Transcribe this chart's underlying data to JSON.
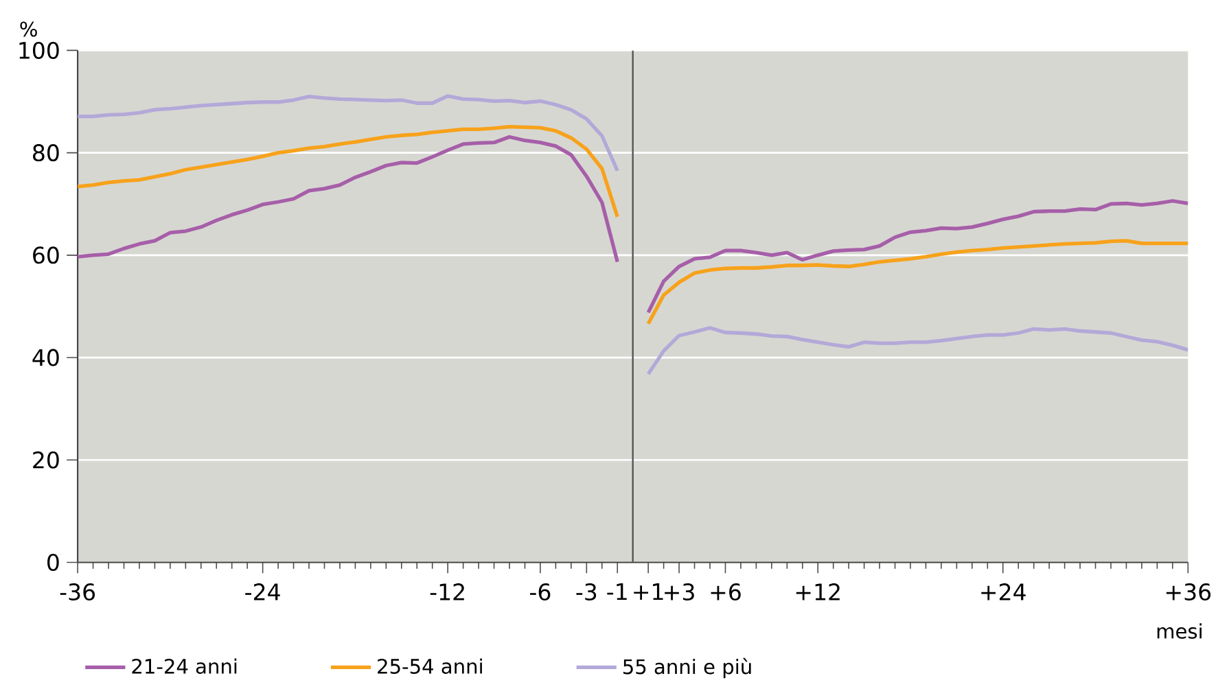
{
  "chart_data": {
    "type": "line",
    "xlabel": "mesi",
    "ylabel": "%",
    "x": [
      -36,
      -35,
      -34,
      -33,
      -32,
      -31,
      -30,
      -29,
      -28,
      -27,
      -26,
      -25,
      -24,
      -23,
      -22,
      -21,
      -20,
      -19,
      -18,
      -17,
      -16,
      -15,
      -14,
      -13,
      -12,
      -11,
      -10,
      -9,
      -8,
      -7,
      -6,
      -5,
      -4,
      -3,
      -2,
      -1,
      0,
      1,
      2,
      3,
      4,
      5,
      6,
      7,
      8,
      9,
      10,
      11,
      12,
      13,
      14,
      15,
      16,
      17,
      18,
      19,
      20,
      21,
      22,
      23,
      24,
      25,
      26,
      27,
      28,
      29,
      30,
      31,
      32,
      33,
      34,
      35,
      36
    ],
    "series": [
      {
        "name": "21-24 anni",
        "color": "#a65fa8",
        "values": [
          59.7,
          60,
          60.2,
          61.3,
          62.2,
          62.8,
          64.4,
          64.7,
          65.5,
          66.8,
          67.9,
          68.8,
          69.9,
          70.4,
          71,
          72.6,
          73,
          73.7,
          75.2,
          76.3,
          77.5,
          78.1,
          78,
          79.2,
          80.5,
          81.7,
          81.9,
          82,
          83.1,
          82.4,
          82,
          81.3,
          79.6,
          75.4,
          70.3,
          58.7,
          null,
          48.8,
          54.9,
          57.8,
          59.3,
          59.6,
          60.9,
          60.9,
          60.5,
          60,
          60.5,
          59.1,
          60,
          60.8,
          61,
          61.1,
          61.8,
          63.5,
          64.5,
          64.8,
          65.3,
          65.2,
          65.5,
          66.2,
          67,
          67.6,
          68.5,
          68.6,
          68.6,
          69,
          68.9,
          70,
          70.1,
          69.8,
          70.1,
          70.6,
          70.1
        ]
      },
      {
        "name": "25-54 anni",
        "color": "#f7a21b",
        "values": [
          73.4,
          73.7,
          74.2,
          74.5,
          74.7,
          75.3,
          75.9,
          76.7,
          77.2,
          77.7,
          78.2,
          78.7,
          79.3,
          80,
          80.4,
          80.9,
          81.2,
          81.7,
          82.1,
          82.6,
          83.1,
          83.4,
          83.6,
          84,
          84.3,
          84.6,
          84.6,
          84.8,
          85.1,
          85,
          84.9,
          84.3,
          82.9,
          80.7,
          76.9,
          67.5,
          null,
          46.6,
          52.2,
          54.7,
          56.5,
          57.1,
          57.4,
          57.5,
          57.5,
          57.7,
          58,
          58,
          58.1,
          57.9,
          57.8,
          58.2,
          58.7,
          59,
          59.3,
          59.7,
          60.2,
          60.6,
          60.9,
          61.1,
          61.4,
          61.6,
          61.8,
          62,
          62.2,
          62.3,
          62.4,
          62.7,
          62.8,
          62.3,
          62.3,
          62.3,
          62.3
        ]
      },
      {
        "name": "55 anni e più",
        "color": "#b3a9d8",
        "values": [
          87.1,
          87.1,
          87.4,
          87.5,
          87.8,
          88.4,
          88.6,
          88.9,
          89.2,
          89.4,
          89.6,
          89.8,
          89.9,
          89.9,
          90.3,
          91,
          90.7,
          90.5,
          90.4,
          90.3,
          90.2,
          90.3,
          89.7,
          89.7,
          91.1,
          90.5,
          90.4,
          90.1,
          90.2,
          89.8,
          90.1,
          89.4,
          88.4,
          86.6,
          83.3,
          76.5,
          null,
          36.8,
          41.3,
          44.3,
          45,
          45.8,
          44.9,
          44.8,
          44.6,
          44.2,
          44.1,
          43.5,
          43,
          42.5,
          42.1,
          43,
          42.8,
          42.8,
          43,
          43,
          43.3,
          43.7,
          44.1,
          44.4,
          44.4,
          44.8,
          45.6,
          45.4,
          45.6,
          45.2,
          45,
          44.8,
          44.1,
          43.4,
          43.1,
          42.4,
          41.5
        ]
      }
    ],
    "xlim": [
      -36,
      36
    ],
    "ylim": [
      0,
      100
    ],
    "yticks": [
      0,
      20,
      40,
      60,
      80,
      100
    ],
    "xticks": [
      -36,
      {
        "value": -35,
        "label": null
      },
      {
        "value": -34,
        "label": null
      },
      {
        "value": -33,
        "label": null
      },
      {
        "value": -32,
        "label": null
      },
      {
        "value": -31,
        "label": null
      },
      {
        "value": -30,
        "label": null
      },
      {
        "value": -29,
        "label": null
      },
      {
        "value": -28,
        "label": null
      },
      {
        "value": -27,
        "label": null
      },
      {
        "value": -26,
        "label": null
      },
      {
        "value": -25,
        "label": null
      },
      -24,
      {
        "value": -23,
        "label": null
      },
      {
        "value": -22,
        "label": null
      },
      {
        "value": -21,
        "label": null
      },
      {
        "value": -20,
        "label": null
      },
      {
        "value": -19,
        "label": null
      },
      {
        "value": -18,
        "label": null
      },
      {
        "value": -17,
        "label": null
      },
      {
        "value": -16,
        "label": null
      },
      {
        "value": -15,
        "label": null
      },
      {
        "value": -14,
        "label": null
      },
      {
        "value": -13,
        "label": null
      },
      -12,
      {
        "value": -11,
        "label": null
      },
      {
        "value": -10,
        "label": null
      },
      {
        "value": -9,
        "label": null
      },
      {
        "value": -8,
        "label": null
      },
      {
        "value": -7,
        "label": null
      },
      -6,
      {
        "value": -5,
        "label": null
      },
      {
        "value": -4,
        "label": null
      },
      -3,
      {
        "value": -2,
        "label": null
      },
      -1,
      {
        "value": 1,
        "label": "+1"
      },
      {
        "value": 2,
        "label": null
      },
      {
        "value": 3,
        "label": "+3"
      },
      {
        "value": 4,
        "label": null
      },
      {
        "value": 5,
        "label": null
      },
      {
        "value": 6,
        "label": "+6"
      },
      {
        "value": 7,
        "label": null
      },
      {
        "value": 8,
        "label": null
      },
      {
        "value": 9,
        "label": null
      },
      {
        "value": 10,
        "label": null
      },
      {
        "value": 11,
        "label": null
      },
      {
        "value": 12,
        "label": "+12"
      },
      {
        "value": 13,
        "label": null
      },
      {
        "value": 14,
        "label": null
      },
      {
        "value": 15,
        "label": null
      },
      {
        "value": 16,
        "label": null
      },
      {
        "value": 17,
        "label": null
      },
      {
        "value": 18,
        "label": null
      },
      {
        "value": 19,
        "label": null
      },
      {
        "value": 20,
        "label": null
      },
      {
        "value": 21,
        "label": null
      },
      {
        "value": 22,
        "label": null
      },
      {
        "value": 23,
        "label": null
      },
      {
        "value": 24,
        "label": "+24"
      },
      {
        "value": 25,
        "label": null
      },
      {
        "value": 26,
        "label": null
      },
      {
        "value": 27,
        "label": null
      },
      {
        "value": 28,
        "label": null
      },
      {
        "value": 29,
        "label": null
      },
      {
        "value": 30,
        "label": null
      },
      {
        "value": 31,
        "label": null
      },
      {
        "value": 32,
        "label": null
      },
      {
        "value": 33,
        "label": null
      },
      {
        "value": 34,
        "label": null
      },
      {
        "value": 35,
        "label": null
      },
      {
        "value": 36,
        "label": "+36"
      }
    ],
    "ref_lines": [
      {
        "axis": "x",
        "value": 0,
        "color": "#555555"
      }
    ],
    "grid": "y",
    "legend": "bottom",
    "marker": "none",
    "line_style": "solid"
  }
}
